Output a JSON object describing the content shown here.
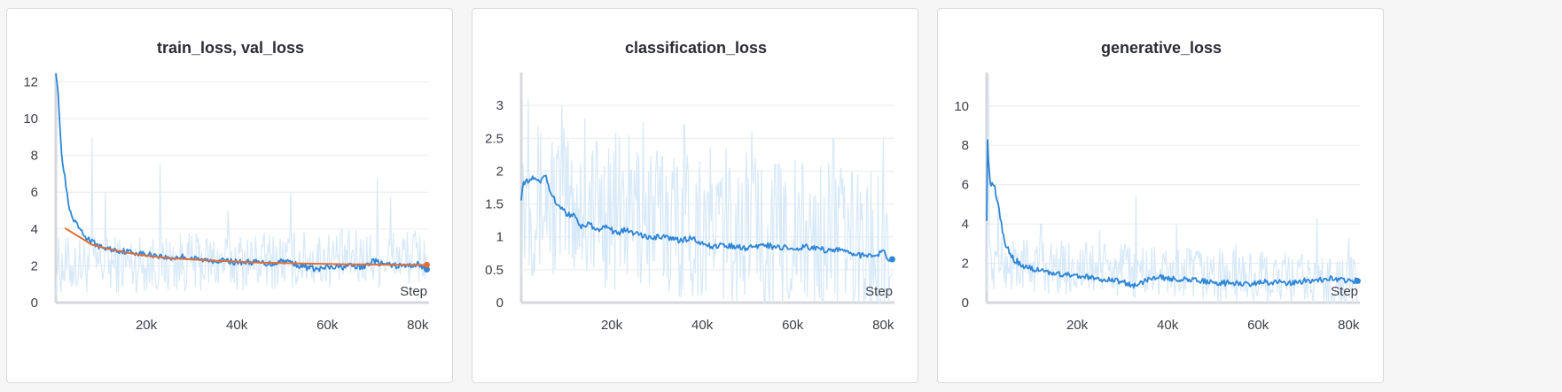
{
  "colors": {
    "series_main": "#2f86d6",
    "series_raw": "#d8e9f8",
    "series_val": "#e06d3a"
  },
  "chart_data": [
    {
      "type": "line",
      "title": "train_loss, val_loss",
      "xlabel": "Step",
      "xlim": [
        0,
        82500
      ],
      "ylim": [
        0,
        12.5
      ],
      "x_ticks": [
        20000,
        40000,
        60000,
        80000
      ],
      "x_tick_labels": [
        "20k",
        "40k",
        "60k",
        "80k"
      ],
      "y_ticks": [
        0,
        2,
        4,
        6,
        8,
        10,
        12
      ],
      "y_tick_labels": [
        "0",
        "2",
        "4",
        "6",
        "8",
        "10",
        "12"
      ],
      "grid": true,
      "series": [
        {
          "role": "smoothed",
          "x": [
            0,
            500,
            1000,
            1500,
            2000,
            2500,
            3000,
            4000,
            5000,
            6000,
            8000,
            10000,
            12000,
            15000,
            18000,
            20000,
            22000,
            25000,
            28000,
            30000,
            33000,
            36000,
            40000,
            44000,
            48000,
            50000,
            52000,
            54000,
            56000,
            58000,
            60000,
            62000,
            65000,
            68000,
            70000,
            72000,
            75000,
            78000,
            80000,
            82000
          ],
          "y": [
            12.6,
            11.5,
            9.0,
            7.5,
            6.8,
            5.8,
            5.0,
            4.4,
            4.1,
            3.7,
            3.3,
            3.0,
            2.9,
            2.8,
            2.7,
            2.6,
            2.6,
            2.4,
            2.5,
            2.4,
            2.3,
            2.3,
            2.2,
            2.2,
            2.1,
            2.3,
            2.2,
            2.0,
            1.9,
            1.8,
            1.9,
            1.9,
            2.0,
            1.9,
            2.3,
            2.1,
            2.0,
            2.0,
            2.1,
            1.8
          ]
        },
        {
          "role": "validation",
          "x": [
            2000,
            5000,
            8000,
            12000,
            16000,
            20000,
            25000,
            30000,
            35000,
            40000,
            45000,
            50000,
            55000,
            60000,
            65000,
            70000,
            75000,
            80000,
            82000
          ],
          "y": [
            4.05,
            3.6,
            3.15,
            2.9,
            2.7,
            2.55,
            2.42,
            2.35,
            2.28,
            2.22,
            2.18,
            2.15,
            2.12,
            2.1,
            2.08,
            2.07,
            2.06,
            2.05,
            2.05
          ]
        }
      ],
      "raw": {
        "center": [
          2.0,
          2.5
        ],
        "spread": 1.6,
        "spikes": [
          [
            8000,
            9.0
          ],
          [
            11000,
            6.0
          ],
          [
            23000,
            7.5
          ],
          [
            38000,
            5.0
          ],
          [
            52000,
            6.0
          ],
          [
            71000,
            6.8
          ],
          [
            74000,
            5.7
          ]
        ]
      }
    },
    {
      "type": "line",
      "title": "classification_loss",
      "xlabel": "Step",
      "xlim": [
        0,
        82500
      ],
      "ylim": [
        0,
        3.5
      ],
      "x_ticks": [
        20000,
        40000,
        60000,
        80000
      ],
      "x_tick_labels": [
        "20k",
        "40k",
        "60k",
        "80k"
      ],
      "y_ticks": [
        0,
        0.5,
        1,
        1.5,
        2,
        2.5,
        3
      ],
      "y_tick_labels": [
        "0",
        "0.5",
        "1",
        "1.5",
        "2",
        "2.5",
        "3"
      ],
      "grid": true,
      "series": [
        {
          "role": "smoothed",
          "x": [
            0,
            500,
            1500,
            3000,
            4500,
            5500,
            6500,
            8000,
            10000,
            12000,
            13000,
            15000,
            17000,
            19000,
            21000,
            23000,
            25000,
            28000,
            30000,
            33000,
            35000,
            38000,
            40000,
            42000,
            45000,
            48000,
            50000,
            53000,
            55000,
            58000,
            60000,
            63000,
            65000,
            68000,
            70000,
            73000,
            75000,
            78000,
            80000,
            81000,
            82000
          ],
          "y": [
            1.6,
            1.8,
            1.85,
            1.9,
            1.85,
            1.95,
            1.65,
            1.5,
            1.35,
            1.3,
            1.15,
            1.2,
            1.1,
            1.15,
            1.05,
            1.1,
            1.05,
            1.0,
            1.0,
            0.98,
            0.95,
            0.98,
            0.9,
            0.85,
            0.88,
            0.85,
            0.82,
            0.88,
            0.86,
            0.84,
            0.82,
            0.85,
            0.84,
            0.78,
            0.8,
            0.75,
            0.72,
            0.7,
            0.8,
            0.62,
            0.66
          ]
        }
      ],
      "raw": {
        "center": [
          1.6,
          0.8
        ],
        "spread": 1.2,
        "spikes": [
          [
            1500,
            3.1
          ],
          [
            9000,
            3.0
          ],
          [
            14000,
            2.8
          ],
          [
            27000,
            2.75
          ],
          [
            36000,
            2.7
          ],
          [
            51000,
            2.6
          ],
          [
            69000,
            2.5
          ],
          [
            80000,
            2.5
          ]
        ]
      }
    },
    {
      "type": "line",
      "title": "generative_loss",
      "xlabel": "Step",
      "xlim": [
        0,
        82500
      ],
      "ylim": [
        0,
        11.7
      ],
      "x_ticks": [
        20000,
        40000,
        60000,
        80000
      ],
      "x_tick_labels": [
        "20k",
        "40k",
        "60k",
        "80k"
      ],
      "y_ticks": [
        0,
        2,
        4,
        6,
        8,
        10
      ],
      "y_tick_labels": [
        "0",
        "2",
        "4",
        "6",
        "8",
        "10"
      ],
      "grid": true,
      "series": [
        {
          "role": "smoothed",
          "x": [
            0,
            200,
            500,
            800,
            1200,
            1800,
            2500,
            3000,
            4000,
            5000,
            6000,
            8000,
            10000,
            12000,
            15000,
            18000,
            20000,
            22000,
            25000,
            28000,
            30000,
            32000,
            34000,
            36000,
            38000,
            40000,
            43000,
            46000,
            49000,
            52000,
            55000,
            58000,
            61000,
            64000,
            67000,
            70000,
            73000,
            76000,
            79000,
            82000
          ],
          "y": [
            4.3,
            8.2,
            6.8,
            6.0,
            6.1,
            5.8,
            5.0,
            4.3,
            3.0,
            2.6,
            2.2,
            1.9,
            1.7,
            1.6,
            1.5,
            1.4,
            1.35,
            1.3,
            1.2,
            1.15,
            1.05,
            0.85,
            0.95,
            1.2,
            1.3,
            1.25,
            1.2,
            1.15,
            1.05,
            1.0,
            1.0,
            0.95,
            1.05,
            1.05,
            1.0,
            1.1,
            1.15,
            1.2,
            1.15,
            1.1
          ]
        }
      ],
      "raw": {
        "center": [
          2.0,
          1.0
        ],
        "spread": 1.4,
        "spikes": [
          [
            400,
            11.6
          ],
          [
            2500,
            5.5
          ],
          [
            12000,
            4.0
          ],
          [
            25000,
            3.7
          ],
          [
            33000,
            5.4
          ],
          [
            42000,
            4.0
          ],
          [
            55000,
            3.0
          ],
          [
            73000,
            4.3
          ],
          [
            80000,
            3.3
          ]
        ]
      }
    }
  ]
}
